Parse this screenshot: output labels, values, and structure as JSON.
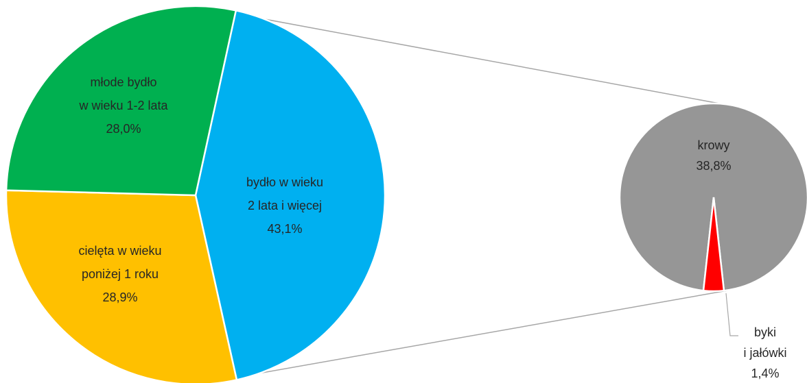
{
  "chart_data": {
    "type": "pie-of-pie",
    "categories": [
      "bydło w wieku\n2 lata i więcej",
      "cielęta w wieku\nponiżej 1 roku",
      "młode bydło\nw wieku 1-2 lata"
    ],
    "values": [
      43.1,
      28.9,
      28.0
    ],
    "value_labels": [
      "43,1%",
      "28,9%",
      "28,0%"
    ],
    "colors": [
      "#00b0f0",
      "#ffc000",
      "#00b050"
    ],
    "secondary": {
      "categories": [
        "krowy",
        "byki\ni jałówki"
      ],
      "values": [
        38.8,
        1.4
      ],
      "value_labels": [
        "38,8%",
        "1,4%"
      ],
      "colors": [
        "#969696",
        "#ff0000"
      ]
    }
  }
}
